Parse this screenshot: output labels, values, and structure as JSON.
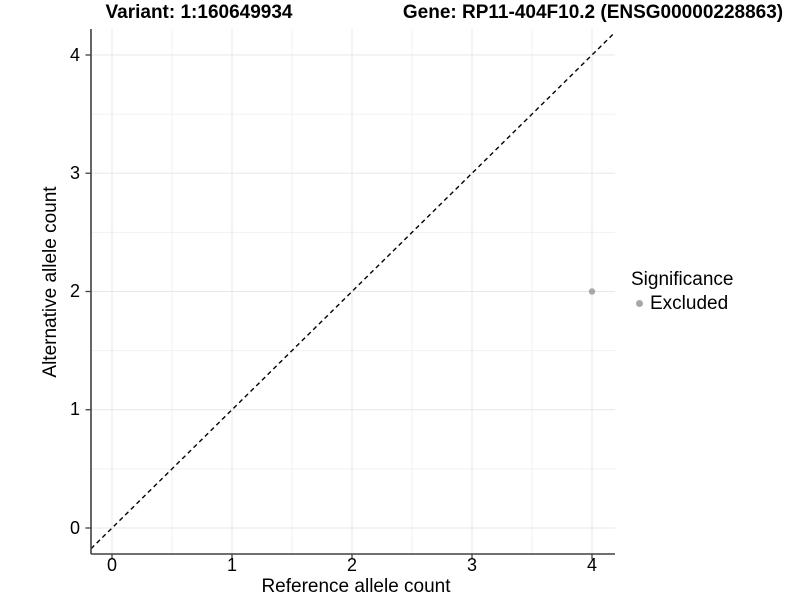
{
  "figure": {
    "title_left": "Variant: 1:160649934",
    "title_right": "Gene: RP11-404F10.2 (ENSG00000228863)"
  },
  "chart_data": {
    "type": "scatter",
    "title": "Variant: 1:160649934 — Gene: RP11-404F10.2 (ENSG00000228863)",
    "xlabel": "Reference allele count",
    "ylabel": "Alternative allele count",
    "x_ticks": [
      0,
      1,
      2,
      3,
      4
    ],
    "y_ticks": [
      0,
      1,
      2,
      3,
      4
    ],
    "xlim": [
      -0.18,
      4.19
    ],
    "ylim": [
      -0.22,
      4.22
    ],
    "grid": "major at integers and minor at 0.5 steps, light gray on white",
    "series": [
      {
        "name": "Excluded",
        "color": "#a8a8a8",
        "points": [
          {
            "x": 4,
            "y": 2
          }
        ]
      }
    ],
    "reference_line": {
      "slope": 1,
      "intercept": 0,
      "linetype": "dashed",
      "color": "#000000"
    },
    "legend": {
      "title": "Significance",
      "position": "right-middle",
      "items": [
        {
          "label": "Excluded",
          "color": "#a8a8a8"
        }
      ]
    },
    "colors": {
      "axis_line": "#404040",
      "tick_mark": "#404040",
      "grid_major": "#e7e7e7",
      "grid_minor": "#f1f1f1",
      "point": "#a8a8a8",
      "text": "#000000"
    }
  }
}
